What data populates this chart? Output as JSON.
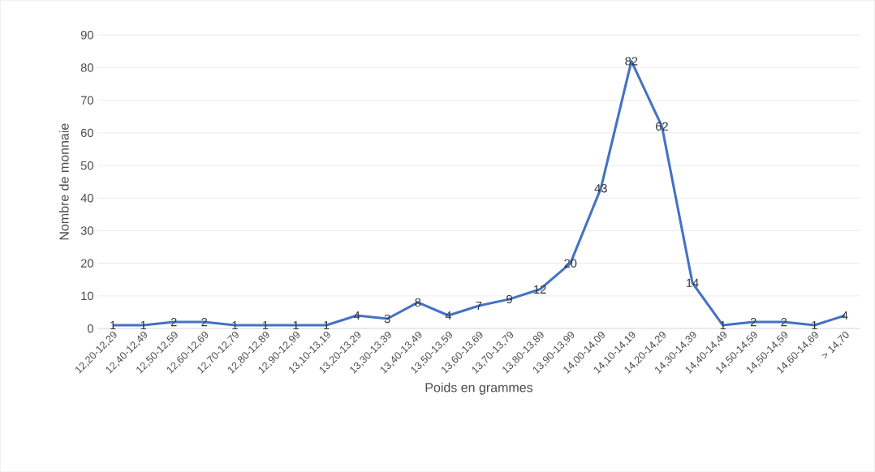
{
  "chart_data": {
    "type": "line",
    "xlabel": "Poids en grammes",
    "ylabel": "Nombre de monnaie",
    "categories": [
      "12,20-12,29",
      "12,40-12,49",
      "12,50-12,59",
      "12,60-12,69",
      "12,70-12,79",
      "12,80-12,89",
      "12,90-12,99",
      "13,10-13,19",
      "13,20-13,29",
      "13,30-13,39",
      "13,40-13,49",
      "13,50-13,59",
      "13,60-13,69",
      "13,70-13,79",
      "13,80-13,89",
      "13,90-13,99",
      "14,00-14,09",
      "14,10-14,19",
      "14,20-14,29",
      "14,30-14,39",
      "14,40-14,49",
      "14,50-14,59",
      "14,50-14,59",
      "14,60-14,69",
      "> 14,70"
    ],
    "values": [
      1,
      1,
      2,
      2,
      1,
      1,
      1,
      1,
      4,
      3,
      8,
      4,
      7,
      9,
      12,
      20,
      43,
      82,
      62,
      14,
      1,
      2,
      2,
      1,
      4
    ],
    "color": "#4472c4",
    "ylim": [
      0,
      90
    ],
    "yticks": [
      0,
      10,
      20,
      30,
      40,
      50,
      60,
      70,
      80,
      90
    ],
    "grid": "y",
    "data_labels": true,
    "line_style": "solid"
  }
}
